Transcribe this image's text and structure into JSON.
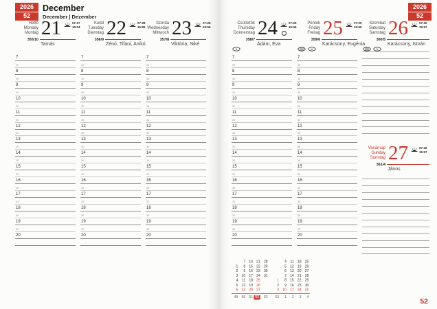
{
  "page": {
    "year": "2026",
    "week": "52",
    "month_title": "December",
    "month_subtitle": "December | Dezember",
    "page_number": "52",
    "accent_color": "#c5342b"
  },
  "icons": {
    "sunrise_sunset": "half-sun-with-rays",
    "full_moon": "circle-outline",
    "marker_dot": "ellipse-with-dot",
    "marker_lines": "ellipse-with-lines"
  },
  "days": [
    {
      "names": [
        "Hétfő",
        "Monday",
        "Montag"
      ],
      "number": "21",
      "sunrise": "07:27",
      "sunset": "15:54",
      "day_of_year": "355/10",
      "name_day": "Tamás",
      "red": false,
      "names_red": false,
      "full_moon": false,
      "markers": []
    },
    {
      "names": [
        "Kedd",
        "Tuesday",
        "Dienstag"
      ],
      "number": "22",
      "sunrise": "07:28",
      "sunset": "15:55",
      "day_of_year": "356/9",
      "name_day": "Zénó, Tifani, Anikó",
      "red": false,
      "names_red": false,
      "full_moon": false,
      "markers": []
    },
    {
      "names": [
        "Szerda",
        "Wednesday",
        "Mittwoch"
      ],
      "number": "23",
      "sunrise": "07:28",
      "sunset": "15:55",
      "day_of_year": "357/8",
      "name_day": "Viktória, Niké",
      "red": false,
      "names_red": false,
      "full_moon": false,
      "markers": []
    },
    {
      "names": [
        "Csütörtök",
        "Thursday",
        "Donnerstag"
      ],
      "number": "24",
      "sunrise": "07:29",
      "sunset": "15:56",
      "day_of_year": "358/7",
      "name_day": "Ádám, Éva",
      "red": false,
      "names_red": false,
      "full_moon": true,
      "markers": [
        "dot"
      ]
    },
    {
      "names": [
        "Péntek",
        "Friday",
        "Freitag"
      ],
      "number": "25",
      "sunrise": "07:29",
      "sunset": "15:56",
      "day_of_year": "359/6",
      "name_day": "Karácsony, Eugénia",
      "red": true,
      "names_red": false,
      "full_moon": false,
      "markers": [
        "lines",
        "dot"
      ]
    },
    {
      "names": [
        "Szombat",
        "Saturday",
        "Samstag"
      ],
      "number": "26",
      "sunrise": "07:30",
      "sunset": "15:57",
      "day_of_year": "360/5",
      "name_day": "Karácsony, István",
      "red": true,
      "names_red": false,
      "full_moon": false,
      "markers": [
        "lines",
        "dot"
      ]
    },
    {
      "names": [
        "Vasárnap",
        "Sunday",
        "Sonntag"
      ],
      "number": "27",
      "sunrise": "07:30",
      "sunset": "15:57",
      "day_of_year": "361/4",
      "name_day": "János",
      "red": true,
      "names_red": true,
      "full_moon": false,
      "markers": []
    }
  ],
  "time_grid": {
    "hours": [
      "7",
      "8",
      "9",
      "10",
      "11",
      "12",
      "13",
      "14",
      "15",
      "16",
      "17",
      "18",
      "19",
      "20"
    ],
    "half_label": "30"
  },
  "mini_calendar": {
    "months": [
      {
        "name": "december",
        "columns": [
          [
            "",
            "1",
            "2",
            "3",
            "4",
            "5",
            "6"
          ],
          [
            "7",
            "8",
            "9",
            "10",
            "11",
            "12",
            "13"
          ],
          [
            "14",
            "15",
            "16",
            "17",
            "18",
            "19",
            "20"
          ],
          [
            "21",
            "22",
            "23",
            "24",
            "25",
            "26",
            "27"
          ],
          [
            "28",
            "29",
            "30",
            "31",
            "",
            "",
            ""
          ]
        ],
        "week_numbers": [
          "49",
          "50",
          "51",
          "52",
          "53"
        ],
        "red_days": [
          "6",
          "13",
          "20",
          "25",
          "26",
          "27"
        ],
        "highlight_week": "52"
      },
      {
        "name": "january",
        "columns": [
          [
            "",
            "",
            "",
            "",
            "1",
            "2",
            "3"
          ],
          [
            "4",
            "5",
            "6",
            "7",
            "8",
            "9",
            "10"
          ],
          [
            "11",
            "12",
            "13",
            "14",
            "15",
            "16",
            "17"
          ],
          [
            "18",
            "19",
            "20",
            "21",
            "22",
            "23",
            "24"
          ],
          [
            "25",
            "26",
            "27",
            "28",
            "29",
            "30",
            "31"
          ]
        ],
        "week_numbers": [
          "53",
          "1",
          "2",
          "3",
          "4"
        ],
        "red_days": [
          "1",
          "3",
          "10",
          "17",
          "24",
          "31"
        ],
        "highlight_week": ""
      }
    ]
  }
}
